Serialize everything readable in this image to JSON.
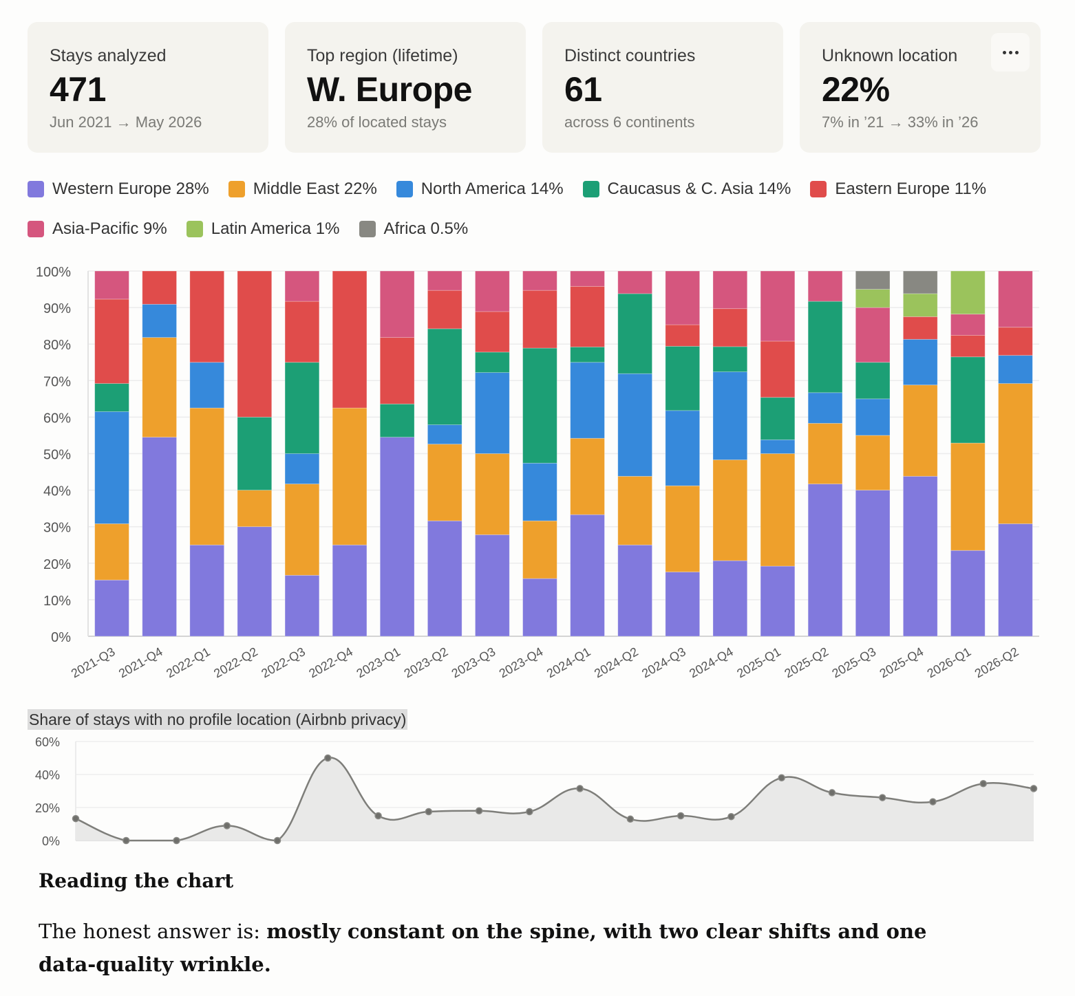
{
  "cards": [
    {
      "label": "Stays analyzed",
      "value": "471",
      "sub": "Jun 2021 → May 2026"
    },
    {
      "label": "Top region (lifetime)",
      "value": "W. Europe",
      "sub": "28% of located stays"
    },
    {
      "label": "Distinct countries",
      "value": "61",
      "sub": "across 6 continents"
    },
    {
      "label": "Unknown location",
      "value": "22%",
      "sub": "7% in ’21 → 33% in ’26",
      "menu_icon": "more-horizontal-icon"
    }
  ],
  "legend": [
    {
      "label": "Western Europe 28%",
      "color": "#8179dd"
    },
    {
      "label": "Middle East 22%",
      "color": "#eea02c"
    },
    {
      "label": "North America 14%",
      "color": "#3689db"
    },
    {
      "label": "Caucasus & C. Asia 14%",
      "color": "#1c9f75"
    },
    {
      "label": "Eastern Europe 11%",
      "color": "#e04c4b"
    },
    {
      "label": "Asia-Pacific 9%",
      "color": "#d5567e"
    },
    {
      "label": "Latin America 1%",
      "color": "#9bc35c"
    },
    {
      "label": "Africa 0.5%",
      "color": "#888882"
    }
  ],
  "chart_data": [
    {
      "type": "bar",
      "stacked": true,
      "normalized": true,
      "title": "",
      "xlabel": "",
      "ylabel": "",
      "ylim": [
        0,
        100
      ],
      "y_ticks": [
        "0%",
        "10%",
        "20%",
        "30%",
        "40%",
        "50%",
        "60%",
        "70%",
        "80%",
        "90%",
        "100%"
      ],
      "grid": true,
      "legend_position": "top",
      "categories": [
        "2021-Q3",
        "2021-Q4",
        "2022-Q1",
        "2022-Q2",
        "2022-Q3",
        "2022-Q4",
        "2023-Q1",
        "2023-Q2",
        "2023-Q3",
        "2023-Q4",
        "2024-Q1",
        "2024-Q2",
        "2024-Q3",
        "2024-Q4",
        "2025-Q1",
        "2025-Q2",
        "2025-Q3",
        "2025-Q4",
        "2026-Q1",
        "2026-Q2"
      ],
      "series": [
        {
          "name": "Western Europe",
          "color": "#8179dd",
          "values": [
            15.4,
            54.5,
            25,
            30,
            16.7,
            25,
            54.5,
            31.6,
            27.8,
            15.8,
            33.3,
            25,
            17.6,
            20.7,
            19.2,
            41.7,
            40,
            43.8,
            23.5,
            30.8
          ]
        },
        {
          "name": "Middle East",
          "color": "#eea02c",
          "values": [
            15.4,
            27.3,
            37.5,
            10,
            25,
            37.5,
            0,
            21,
            22.2,
            15.8,
            20.9,
            18.8,
            23.6,
            27.6,
            30.8,
            16.6,
            15,
            25,
            29.4,
            38.4
          ]
        },
        {
          "name": "North America",
          "color": "#3689db",
          "values": [
            30.7,
            9.1,
            12.5,
            0,
            8.3,
            0,
            0,
            5.3,
            22.2,
            15.8,
            20.8,
            28.1,
            20.6,
            24.1,
            3.8,
            8.4,
            10,
            12.5,
            0,
            7.7
          ]
        },
        {
          "name": "Caucasus & C. Asia",
          "color": "#1c9f75",
          "values": [
            7.7,
            0,
            0,
            20,
            25,
            0,
            9.1,
            26.3,
            5.6,
            31.5,
            4.2,
            21.9,
            17.6,
            6.9,
            11.6,
            25,
            10,
            0,
            23.6,
            0
          ]
        },
        {
          "name": "Eastern Europe",
          "color": "#e04c4b",
          "values": [
            23.1,
            9.1,
            25,
            40,
            16.7,
            37.5,
            18.2,
            10.5,
            11.1,
            15.8,
            16.6,
            0,
            5.9,
            10.4,
            15.4,
            0,
            0,
            6.2,
            5.9,
            7.7
          ]
        },
        {
          "name": "Asia-Pacific",
          "color": "#d5567e",
          "values": [
            7.7,
            0,
            0,
            0,
            8.3,
            0,
            18.2,
            5.3,
            11.1,
            5.3,
            4.2,
            6.2,
            14.7,
            10.3,
            19.2,
            8.3,
            15,
            0,
            5.8,
            15.4
          ]
        },
        {
          "name": "Latin America",
          "color": "#9bc35c",
          "values": [
            0,
            0,
            0,
            0,
            0,
            0,
            0,
            0,
            0,
            0,
            0,
            0,
            0,
            0,
            0,
            0,
            5,
            6.3,
            11.8,
            0
          ]
        },
        {
          "name": "Africa",
          "color": "#888882",
          "values": [
            0,
            0,
            0,
            0,
            0,
            0,
            0,
            0,
            0,
            0,
            0,
            0,
            0,
            0,
            0,
            0,
            5,
            6.2,
            0,
            0
          ]
        }
      ]
    },
    {
      "type": "area",
      "title": "Share of stays with no profile location (Airbnb privacy)",
      "xlabel": "",
      "ylabel": "",
      "ylim": [
        0,
        60
      ],
      "y_ticks": [
        "0%",
        "20%",
        "40%",
        "60%"
      ],
      "grid": true,
      "x": [
        "2021-Q3",
        "2021-Q4",
        "2022-Q1",
        "2022-Q2",
        "2022-Q3",
        "2022-Q4",
        "2023-Q1",
        "2023-Q2",
        "2023-Q3",
        "2023-Q4",
        "2024-Q1",
        "2024-Q2",
        "2024-Q3",
        "2024-Q4",
        "2025-Q1",
        "2025-Q2",
        "2025-Q3",
        "2025-Q4",
        "2026-Q1",
        "2026-Q2"
      ],
      "series": [
        {
          "name": "Unknown location share",
          "color": "#7e7e7a",
          "values": [
            13.3,
            0,
            0,
            9,
            0,
            50,
            15,
            17.5,
            18,
            17.5,
            31.5,
            13,
            15,
            14.5,
            38,
            29,
            26,
            23.5,
            34.5,
            31.5
          ]
        }
      ]
    }
  ],
  "reading": {
    "title": "Reading the chart",
    "intro": "The honest answer is: ",
    "emphasis": "mostly constant on the spine, with two clear shifts and one data-quality wrinkle."
  }
}
